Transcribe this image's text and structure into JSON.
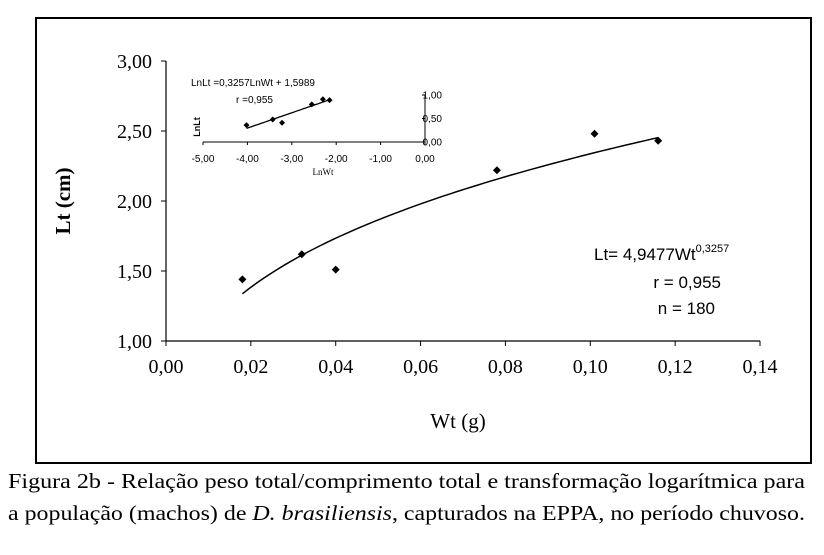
{
  "chart_data": [
    {
      "type": "scatter",
      "xlabel": "Wt (g)",
      "ylabel": "Lt (cm)",
      "xlim": [
        0,
        0.14
      ],
      "ylim": [
        1.0,
        3.0
      ],
      "x_ticks": [
        "0,00",
        "0,02",
        "0,04",
        "0,06",
        "0,08",
        "0,10",
        "0,12",
        "0,14"
      ],
      "y_ticks": [
        "1,00",
        "1,50",
        "2,00",
        "2,50",
        "3,00"
      ],
      "grid": false,
      "points": {
        "x": [
          0.018,
          0.032,
          0.04,
          0.078,
          0.101,
          0.116
        ],
        "y": [
          1.44,
          1.62,
          1.51,
          2.22,
          2.48,
          2.43
        ]
      },
      "trendline": {
        "type": "power",
        "a": 4.9477,
        "b": 0.3257,
        "x_range": [
          0.018,
          0.116
        ]
      },
      "annotations": [
        "Lt= 4,9477Wt",
        "0,3257",
        "r = 0,955",
        "n = 180"
      ]
    },
    {
      "type": "scatter",
      "xlabel": "LnWt",
      "ylabel": "LnLt",
      "xlim": [
        -5.0,
        0.0
      ],
      "ylim": [
        0.0,
        1.0
      ],
      "x_ticks": [
        "-5,00",
        "-4,00",
        "-3,00",
        "-2,00",
        "-1,00",
        "0,00"
      ],
      "y_ticks": [
        "0,00",
        "0,50",
        "1,00"
      ],
      "grid": false,
      "points": {
        "x": [
          -4.02,
          -3.43,
          -3.22,
          -2.55,
          -2.3,
          -2.15
        ],
        "y": [
          0.36,
          0.48,
          0.41,
          0.8,
          0.91,
          0.89
        ]
      },
      "trendline": {
        "type": "linear",
        "slope": 0.3257,
        "intercept": 1.5989,
        "x_range": [
          -4.02,
          -2.15
        ]
      },
      "annotations": [
        "LnLt =0,3257LnWt + 1,5989",
        "r =0,955"
      ]
    }
  ],
  "caption": {
    "line1": "Figura 2b - Relação peso total/comprimento total e transformação logarítmica para",
    "line2_pre": "a população (machos) de ",
    "line2_italic": "D. brasiliensis",
    "line2_post": ", capturados na EPPA, no período chuvoso."
  }
}
